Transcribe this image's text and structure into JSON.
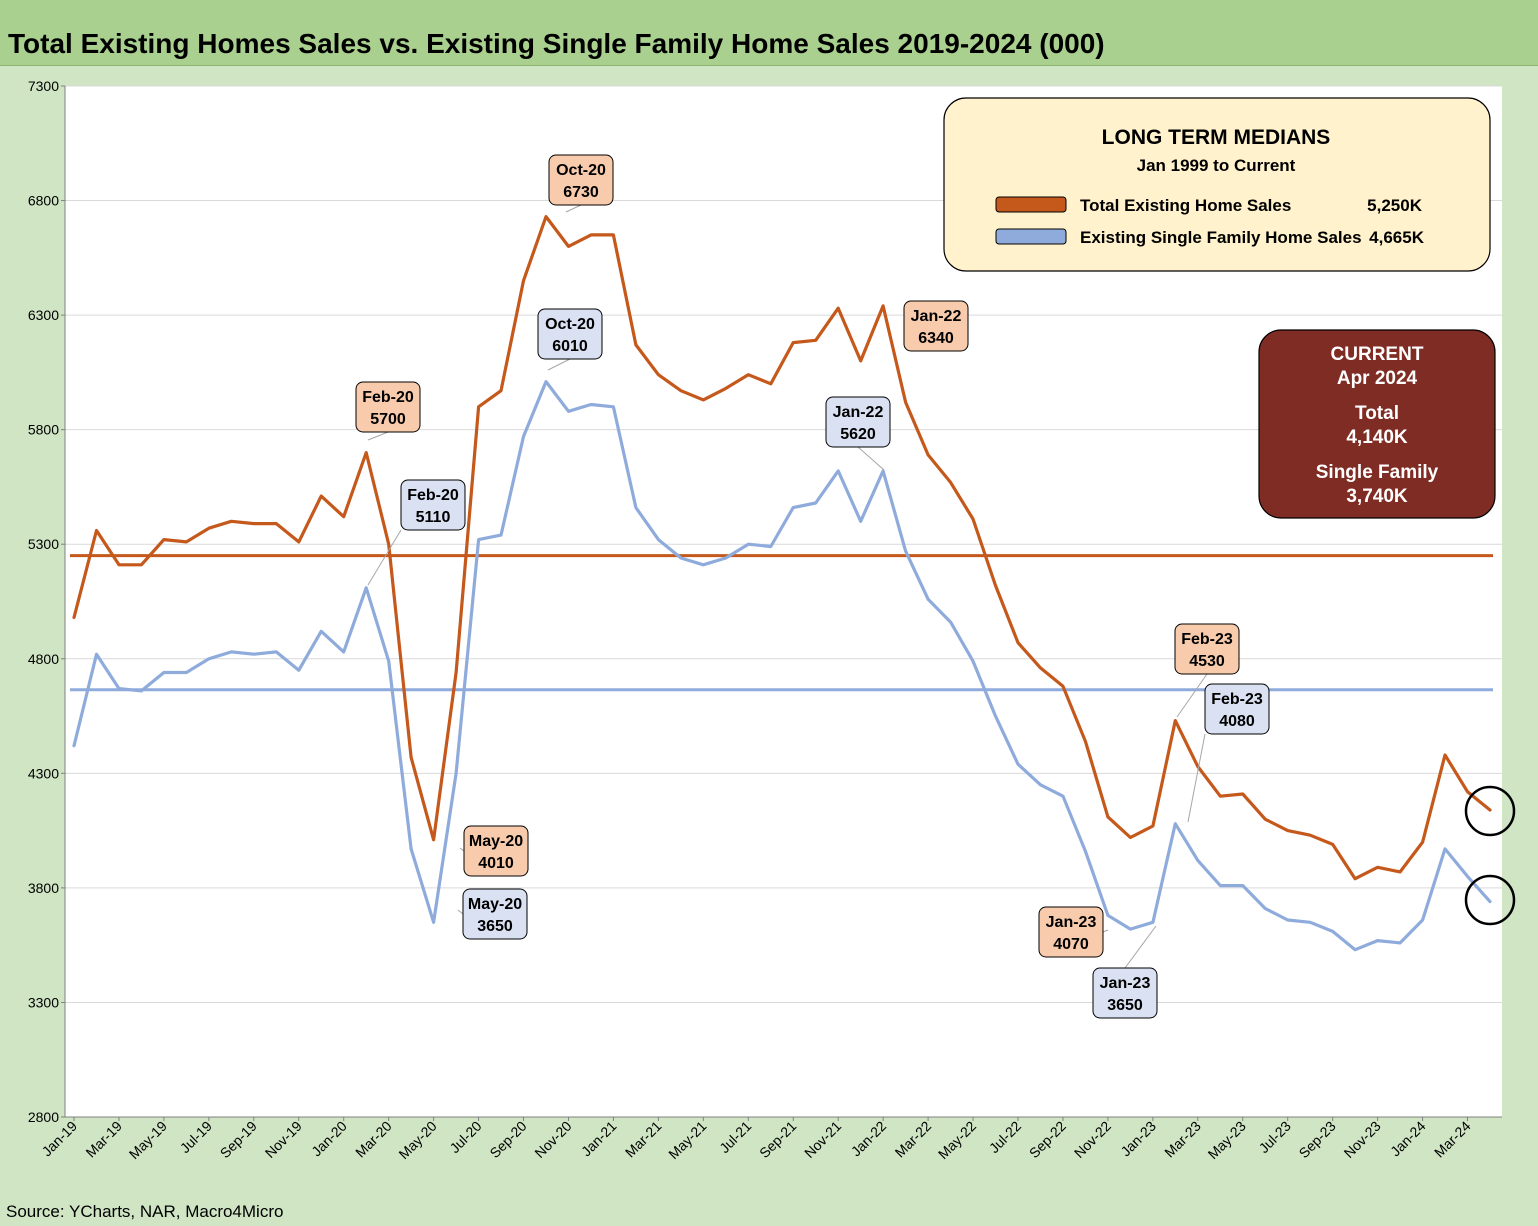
{
  "header": {
    "title": "Total Existing Homes Sales vs. Existing Single Family Home Sales 2019-2024 (000)"
  },
  "footer": {
    "source": "Source: YCharts, NAR, Macro4Micro"
  },
  "medians_box": {
    "title": "LONG TERM MEDIANS",
    "subtitle": "Jan 1999 to Current",
    "items": [
      {
        "label": "Total Existing Home Sales",
        "value": "5,250K",
        "color": "#c5581b"
      },
      {
        "label": "Existing Single Family Home Sales",
        "value": "4,665K",
        "color": "#8fabdc"
      }
    ]
  },
  "current_box": {
    "line1": "CURRENT",
    "line2": "Apr 2024",
    "line3": "Total",
    "line4": "4,140K",
    "line5": "Single Family",
    "line6": "3,740K",
    "bg_color": "#7f2d24"
  },
  "chart_data": {
    "type": "line",
    "x": [
      "Jan-19",
      "Feb-19",
      "Mar-19",
      "Apr-19",
      "May-19",
      "Jun-19",
      "Jul-19",
      "Aug-19",
      "Sep-19",
      "Oct-19",
      "Nov-19",
      "Dec-19",
      "Jan-20",
      "Feb-20",
      "Mar-20",
      "Apr-20",
      "May-20",
      "Jun-20",
      "Jul-20",
      "Aug-20",
      "Sep-20",
      "Oct-20",
      "Nov-20",
      "Dec-20",
      "Jan-21",
      "Feb-21",
      "Mar-21",
      "Apr-21",
      "May-21",
      "Jun-21",
      "Jul-21",
      "Aug-21",
      "Sep-21",
      "Oct-21",
      "Nov-21",
      "Dec-21",
      "Jan-22",
      "Feb-22",
      "Mar-22",
      "Apr-22",
      "May-22",
      "Jun-22",
      "Jul-22",
      "Aug-22",
      "Sep-22",
      "Oct-22",
      "Nov-22",
      "Dec-22",
      "Jan-23",
      "Feb-23",
      "Mar-23",
      "Apr-23",
      "May-23",
      "Jun-23",
      "Jul-23",
      "Aug-23",
      "Sep-23",
      "Oct-23",
      "Nov-23",
      "Dec-23",
      "Jan-24",
      "Feb-24",
      "Mar-24",
      "Apr-24"
    ],
    "x_tick_labels": [
      "Jan-19",
      "Mar-19",
      "May-19",
      "Jul-19",
      "Sep-19",
      "Nov-19",
      "Jan-20",
      "Mar-20",
      "May-20",
      "Jul-20",
      "Sep-20",
      "Nov-20",
      "Jan-21",
      "Mar-21",
      "May-21",
      "Jul-21",
      "Sep-21",
      "Nov-21",
      "Jan-22",
      "Mar-22",
      "May-22",
      "Jul-22",
      "Sep-22",
      "Nov-22",
      "Jan-23",
      "Mar-23",
      "May-23",
      "Jul-23",
      "Sep-23",
      "Nov-23",
      "Jan-24",
      "Mar-24"
    ],
    "series": [
      {
        "name": "Total Existing Home Sales",
        "color": "#c5581b",
        "values": [
          4980,
          5360,
          5210,
          5210,
          5320,
          5310,
          5370,
          5400,
          5390,
          5390,
          5310,
          5510,
          5420,
          5700,
          5300,
          4370,
          4010,
          4740,
          5900,
          5970,
          6450,
          6730,
          6600,
          6650,
          6650,
          6170,
          6040,
          5970,
          5930,
          5980,
          6040,
          6000,
          6180,
          6190,
          6330,
          6100,
          6340,
          5920,
          5690,
          5570,
          5410,
          5120,
          4870,
          4760,
          4680,
          4440,
          4110,
          4020,
          4070,
          4530,
          4330,
          4200,
          4210,
          4100,
          4050,
          4030,
          3990,
          3840,
          3890,
          3870,
          4000,
          4380,
          4220,
          4140
        ]
      },
      {
        "name": "Existing Single Family Home Sales",
        "color": "#8fabdc",
        "values": [
          4420,
          4820,
          4670,
          4660,
          4740,
          4740,
          4800,
          4830,
          4820,
          4830,
          4750,
          4920,
          4830,
          5110,
          4790,
          3970,
          3650,
          4300,
          5320,
          5340,
          5770,
          6010,
          5880,
          5910,
          5900,
          5460,
          5320,
          5240,
          5210,
          5240,
          5300,
          5290,
          5460,
          5480,
          5620,
          5400,
          5620,
          5270,
          5060,
          4960,
          4790,
          4550,
          4340,
          4250,
          4200,
          3960,
          3680,
          3620,
          3650,
          4080,
          3920,
          3810,
          3810,
          3710,
          3660,
          3650,
          3610,
          3530,
          3570,
          3560,
          3660,
          3970,
          3850,
          3740
        ]
      }
    ],
    "medians": [
      {
        "name": "Total Existing Home Sales",
        "value": 5250
      },
      {
        "name": "Existing Single Family Home Sales",
        "value": 4665
      }
    ],
    "annotations": [
      {
        "label": "Feb-20",
        "value": "5700",
        "series": 0
      },
      {
        "label": "May-20",
        "value": "4010",
        "series": 0
      },
      {
        "label": "Oct-20",
        "value": "6730",
        "series": 0
      },
      {
        "label": "Jan-22",
        "value": "6340",
        "series": 0
      },
      {
        "label": "Jan-23",
        "value": "4070",
        "series": 0
      },
      {
        "label": "Feb-23",
        "value": "4530",
        "series": 0
      },
      {
        "label": "Feb-20",
        "value": "5110",
        "series": 1
      },
      {
        "label": "May-20",
        "value": "3650",
        "series": 1
      },
      {
        "label": "Oct-20",
        "value": "6010",
        "series": 1
      },
      {
        "label": "Jan-22",
        "value": "5620",
        "series": 1
      },
      {
        "label": "Jan-23",
        "value": "3650",
        "series": 1
      },
      {
        "label": "Feb-23",
        "value": "4080",
        "series": 1
      }
    ],
    "ylim": [
      2800,
      7300
    ],
    "y_ticks": [
      2800,
      3300,
      3800,
      4300,
      4800,
      5300,
      5800,
      6300,
      6800,
      7300
    ],
    "grid": true
  }
}
